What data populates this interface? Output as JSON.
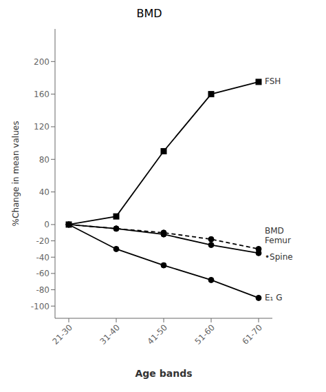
{
  "chart_data": {
    "type": "line",
    "title": "BMD",
    "x_label": "Age bands",
    "y_label": "%Change in mean values",
    "categories": [
      "21-30",
      "31-40",
      "41-50",
      "51-60",
      "61-70"
    ],
    "series": [
      {
        "color": "#000000",
        "marker": "square",
        "line_style": "solid",
        "values": [
          0,
          10,
          90,
          160,
          175
        ]
      },
      {
        "color": "#000000",
        "marker": "circle",
        "line_style": "solid",
        "values": [
          0,
          -30,
          -50,
          -68,
          -90
        ]
      },
      {
        "color": "#000000",
        "marker": "circle",
        "line_style": "dashed",
        "values": [
          0,
          -5,
          -10,
          -18,
          -30
        ]
      },
      {
        "color": "#000000",
        "marker": "circle",
        "line_style": "solid",
        "values": [
          0,
          -5,
          -12,
          -25,
          -35
        ]
      }
    ],
    "ylim": [
      -115,
      240
    ],
    "yticks": [
      -100,
      -80,
      -60,
      -40,
      -20,
      0,
      40,
      80,
      120,
      160,
      200
    ],
    "grid": false,
    "annotations": [
      "FSH",
      "BMD",
      "Femur",
      "•Spine",
      "E₁ G"
    ]
  }
}
